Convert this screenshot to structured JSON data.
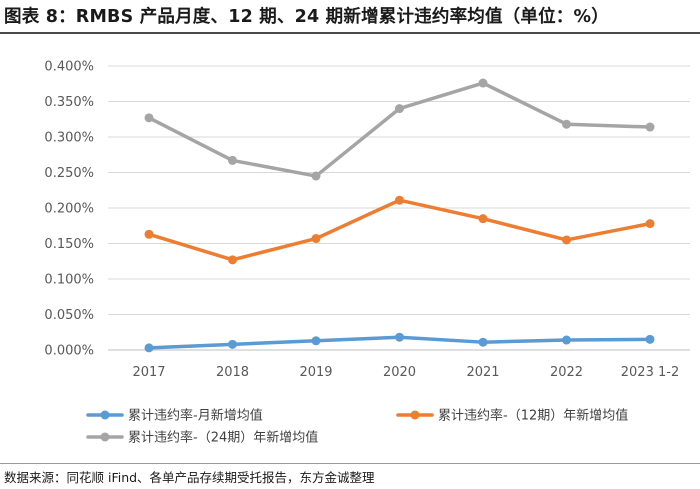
{
  "title": "图表 8：RMBS 产品月度、12 期、24 期新增累计违约率均值（单位：%）",
  "source": "数据来源：同花顺 iFind、各单产品存续期受托报告，东方金诚整理",
  "chart_data": {
    "type": "line",
    "categories": [
      "2017",
      "2018",
      "2019",
      "2020",
      "2021",
      "2022",
      "2023 1-2"
    ],
    "ylim": [
      0,
      0.4
    ],
    "yticks": [
      0,
      0.05,
      0.1,
      0.15,
      0.2,
      0.25,
      0.3,
      0.35,
      0.4
    ],
    "ytick_labels": [
      "0.000%",
      "0.050%",
      "0.100%",
      "0.150%",
      "0.200%",
      "0.250%",
      "0.300%",
      "0.350%",
      "0.400%"
    ],
    "grid": true,
    "legend_position": "bottom",
    "series": [
      {
        "name": "累计违约率-月新增均值",
        "color": "#5B9BD5",
        "values": [
          0.003,
          0.008,
          0.013,
          0.018,
          0.011,
          0.014,
          0.015
        ]
      },
      {
        "name": "累计违约率-（12期）年新增均值",
        "color": "#ED7D31",
        "values": [
          0.163,
          0.127,
          0.157,
          0.211,
          0.185,
          0.155,
          0.178
        ]
      },
      {
        "name": "累计违约率-（24期）年新增均值",
        "color": "#A5A5A5",
        "values": [
          0.327,
          0.267,
          0.245,
          0.34,
          0.376,
          0.318,
          0.314
        ]
      }
    ]
  }
}
